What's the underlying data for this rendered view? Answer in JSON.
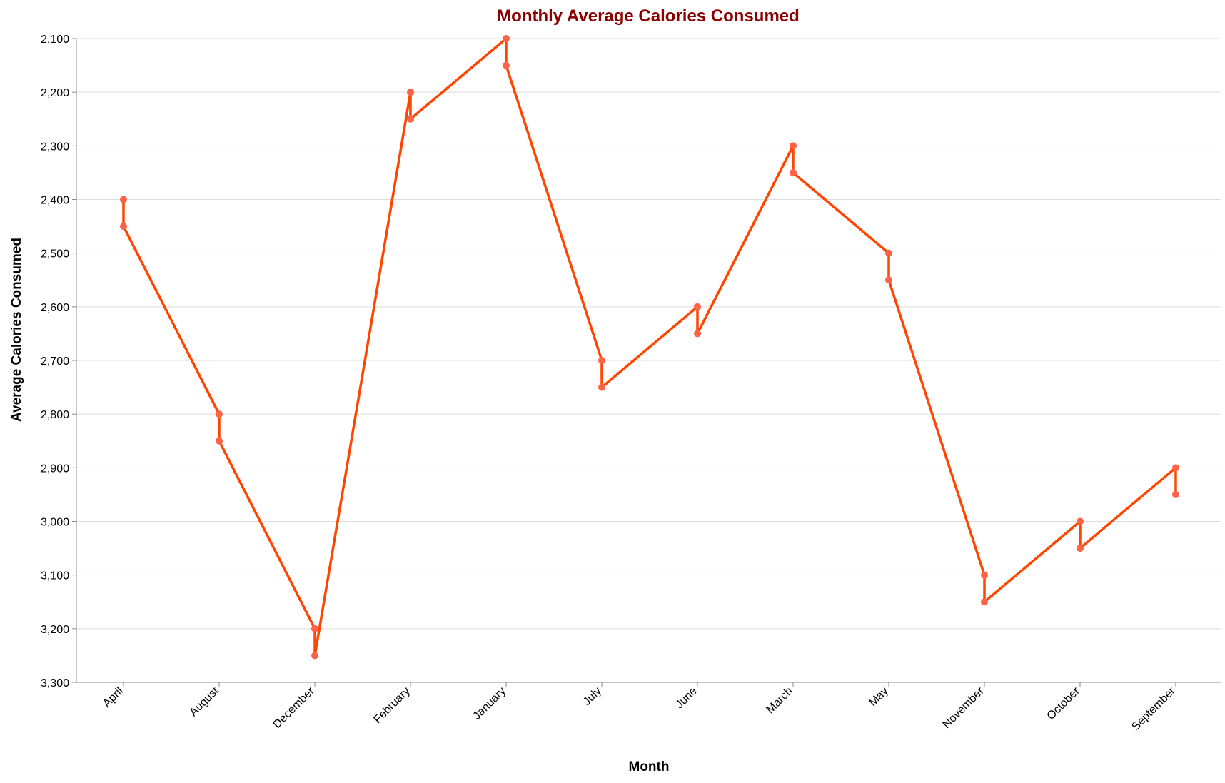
{
  "chart_data": {
    "type": "line",
    "title": "Monthly Average Calories Consumed",
    "xlabel": "Month",
    "ylabel": "Average Calories Consumed",
    "categories": [
      "April",
      "August",
      "December",
      "February",
      "January",
      "July",
      "June",
      "March",
      "May",
      "November",
      "October",
      "September"
    ],
    "y_ticks": [
      "2,100",
      "2,200",
      "2,300",
      "2,400",
      "2,500",
      "2,600",
      "2,700",
      "2,800",
      "2,900",
      "3,000",
      "3,100",
      "3,200",
      "3,300"
    ],
    "ylim": [
      2100,
      3300
    ],
    "y_axis_reversed": true,
    "grid": true,
    "series": [
      {
        "points": [
          {
            "x": "April",
            "y": 2400
          },
          {
            "x": "April",
            "y": 2450
          },
          {
            "x": "August",
            "y": 2800
          },
          {
            "x": "August",
            "y": 2850
          },
          {
            "x": "December",
            "y": 3200
          },
          {
            "x": "December",
            "y": 3250
          },
          {
            "x": "February",
            "y": 2200
          },
          {
            "x": "February",
            "y": 2250
          },
          {
            "x": "January",
            "y": 2100
          },
          {
            "x": "January",
            "y": 2150
          },
          {
            "x": "July",
            "y": 2700
          },
          {
            "x": "July",
            "y": 2750
          },
          {
            "x": "June",
            "y": 2600
          },
          {
            "x": "June",
            "y": 2650
          },
          {
            "x": "March",
            "y": 2300
          },
          {
            "x": "March",
            "y": 2350
          },
          {
            "x": "May",
            "y": 2500
          },
          {
            "x": "May",
            "y": 2550
          },
          {
            "x": "November",
            "y": 3100
          },
          {
            "x": "November",
            "y": 3150
          },
          {
            "x": "October",
            "y": 3000
          },
          {
            "x": "October",
            "y": 3050
          },
          {
            "x": "September",
            "y": 2900
          },
          {
            "x": "September",
            "y": 2950
          }
        ]
      }
    ],
    "colors": {
      "line": "#ff4500",
      "point": "#ff6347",
      "title": "#8b0000"
    }
  }
}
